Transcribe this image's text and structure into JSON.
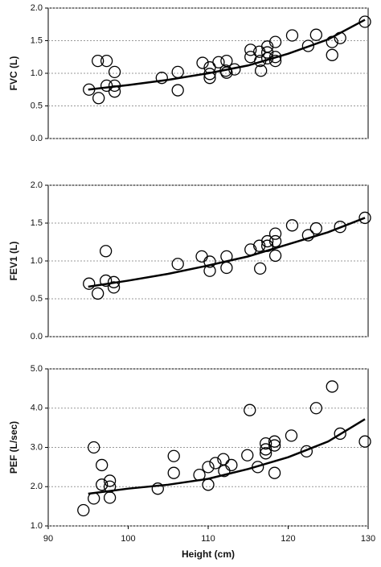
{
  "chart_data": [
    {
      "type": "scatter",
      "y_label": "FVC (L)",
      "x": [
        95.1,
        96.2,
        96.3,
        97.3,
        97.3,
        98.3,
        98.3,
        98.3,
        104.2,
        106.2,
        106.2,
        109.3,
        110.2,
        110.2,
        110.2,
        111.3,
        112.2,
        112.3,
        112.3,
        113.3,
        115.3,
        115.3,
        116.4,
        116.5,
        116.6,
        117.4,
        117.4,
        117.4,
        118.4,
        118.4,
        118.4,
        120.5,
        122.5,
        123.5,
        125.5,
        125.5,
        126.5,
        129.6
      ],
      "y": [
        0.75,
        1.19,
        0.62,
        1.19,
        0.81,
        1.02,
        0.81,
        0.72,
        0.93,
        1.02,
        0.74,
        1.16,
        1.09,
        0.99,
        0.93,
        1.17,
        1.04,
        1.19,
        1.01,
        1.06,
        1.36,
        1.25,
        1.33,
        1.19,
        1.04,
        1.41,
        1.32,
        1.23,
        1.48,
        1.25,
        1.19,
        1.58,
        1.42,
        1.59,
        1.48,
        1.28,
        1.54,
        1.79
      ],
      "trend": {
        "x": [
          95,
          100,
          105,
          110,
          115,
          120,
          125,
          129.6
        ],
        "y": [
          0.75,
          0.82,
          0.9,
          1.0,
          1.12,
          1.3,
          1.52,
          1.82
        ]
      },
      "color": "#000000",
      "grid": true,
      "xlim": [
        90,
        130
      ],
      "ylim": [
        0,
        2
      ],
      "yticks": [
        {
          "value": 0,
          "label": "0.0"
        },
        {
          "value": 0.5,
          "label": "0.5"
        },
        {
          "value": 1,
          "label": "1.0"
        },
        {
          "value": 1.5,
          "label": "1.5"
        },
        {
          "value": 2,
          "label": "2.0"
        }
      ]
    },
    {
      "type": "scatter",
      "y_label": "FEV1 (L)",
      "x": [
        95.1,
        96.2,
        97.2,
        97.2,
        98.2,
        98.2,
        106.2,
        109.2,
        110.2,
        110.2,
        112.3,
        112.3,
        115.3,
        116.4,
        116.5,
        117.4,
        117.4,
        118.4,
        118.4,
        118.4,
        120.5,
        122.5,
        123.5,
        126.5,
        129.6
      ],
      "y": [
        0.7,
        0.57,
        1.13,
        0.74,
        0.72,
        0.65,
        0.96,
        1.06,
        0.99,
        0.87,
        1.06,
        0.91,
        1.15,
        1.2,
        0.9,
        1.26,
        1.2,
        1.36,
        1.26,
        1.07,
        1.47,
        1.34,
        1.43,
        1.45,
        1.57
      ],
      "trend": {
        "x": [
          95,
          100,
          105,
          110,
          115,
          120,
          125,
          129.6
        ],
        "y": [
          0.66,
          0.74,
          0.83,
          0.94,
          1.06,
          1.22,
          1.38,
          1.57
        ]
      },
      "color": "#000000",
      "grid": true,
      "xlim": [
        90,
        130
      ],
      "ylim": [
        0,
        2
      ],
      "yticks": [
        {
          "value": 0,
          "label": "0.0"
        },
        {
          "value": 0.5,
          "label": "0.5"
        },
        {
          "value": 1,
          "label": "1.0"
        },
        {
          "value": 1.5,
          "label": "1.5"
        },
        {
          "value": 2,
          "label": "2.0"
        }
      ]
    },
    {
      "type": "scatter",
      "y_label": "PEF (L/sec)",
      "x_label": "Height (cm)",
      "x": [
        94.4,
        95.7,
        95.7,
        96.7,
        96.7,
        97.7,
        97.7,
        97.7,
        103.7,
        105.7,
        105.7,
        108.9,
        110.0,
        110.0,
        110.9,
        111.9,
        112.0,
        112.9,
        114.9,
        115.2,
        116.2,
        117.2,
        117.2,
        117.2,
        118.3,
        118.3,
        118.3,
        120.4,
        122.3,
        123.5,
        125.5,
        126.5,
        129.6
      ],
      "y": [
        1.4,
        3.0,
        1.7,
        2.55,
        2.05,
        2.15,
        2.0,
        1.72,
        1.95,
        2.78,
        2.35,
        2.3,
        2.5,
        2.05,
        2.6,
        2.7,
        2.4,
        2.55,
        2.8,
        3.95,
        2.5,
        3.1,
        2.85,
        2.95,
        3.15,
        3.05,
        2.35,
        3.3,
        2.9,
        4.0,
        4.55,
        3.35,
        3.15
      ],
      "trend": {
        "x": [
          95,
          100,
          105,
          110,
          115,
          120,
          125,
          129.6
        ],
        "y": [
          1.82,
          1.95,
          2.05,
          2.2,
          2.45,
          2.75,
          3.15,
          3.72
        ]
      },
      "color": "#000000",
      "grid": true,
      "xlim": [
        90,
        130
      ],
      "xticks": [
        90,
        100,
        110,
        120,
        130
      ],
      "ylim": [
        1,
        5
      ],
      "yticks": [
        {
          "value": 1,
          "label": "1.0"
        },
        {
          "value": 2,
          "label": "2.0"
        },
        {
          "value": 3,
          "label": "3.0"
        },
        {
          "value": 4,
          "label": "4.0"
        },
        {
          "value": 5,
          "label": "5.0"
        }
      ]
    }
  ]
}
